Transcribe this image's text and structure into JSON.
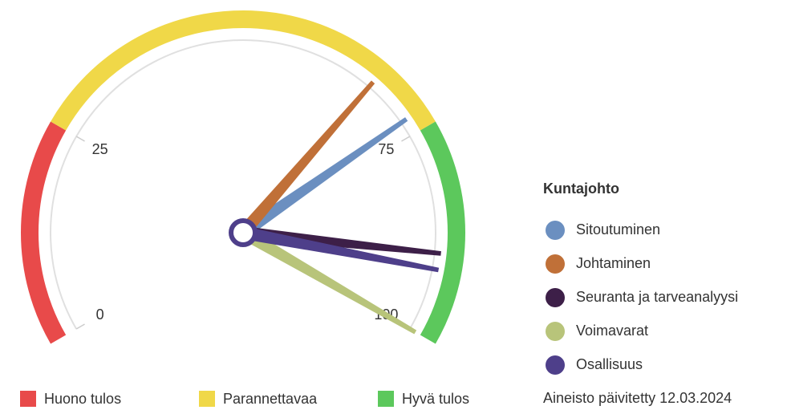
{
  "chart_data": {
    "type": "gauge",
    "xlim": [
      0,
      100
    ],
    "xticks": [
      0,
      25,
      75,
      100
    ],
    "bands": [
      {
        "name": "Huono tulos",
        "color": "#e84a4a",
        "from": 0,
        "to": 25
      },
      {
        "name": "Parannettavaa",
        "color": "#f0d848",
        "from": 25,
        "to": 75
      },
      {
        "name": "Hyvä tulos",
        "color": "#5cc85c",
        "from": 75,
        "to": 100
      }
    ],
    "legend_title": "Kuntajohto",
    "series": [
      {
        "name": "Sitoutuminen",
        "color": "#6b8fc0",
        "value": 73
      },
      {
        "name": "Johtaminen",
        "color": "#c07038",
        "value": 67
      },
      {
        "name": "Seuranta ja tarveanalyysi",
        "color": "#3d1f48",
        "value": 90
      },
      {
        "name": "Voimavarat",
        "color": "#b8c47a",
        "value": 100
      },
      {
        "name": "Osallisuus",
        "color": "#4e3f8a",
        "value": 92
      }
    ],
    "footnote": "Aineisto päivitetty 12.03.2024"
  }
}
